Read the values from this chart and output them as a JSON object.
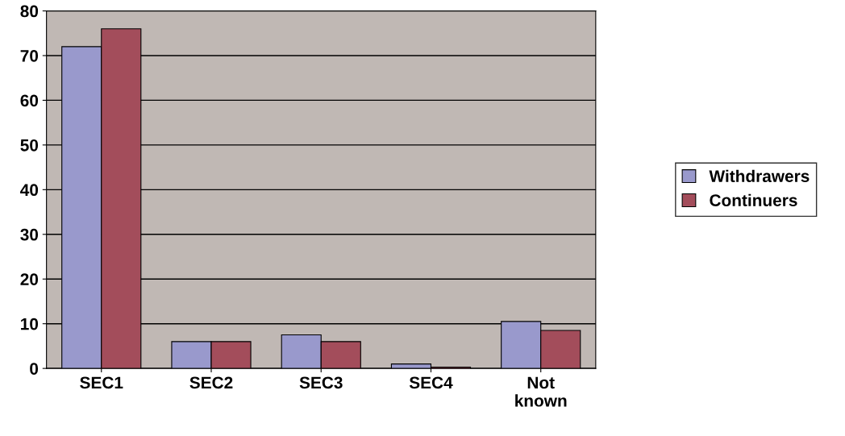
{
  "chart_data": {
    "type": "bar",
    "categories": [
      "SEC1",
      "SEC2",
      "SEC3",
      "SEC4",
      "Not\nknown"
    ],
    "series": [
      {
        "name": "Withdrawers",
        "color": "#9999cc",
        "values": [
          72,
          6,
          7.5,
          1,
          10.5
        ]
      },
      {
        "name": "Continuers",
        "color": "#a34d5b",
        "values": [
          76,
          6,
          6,
          0.3,
          8.5
        ]
      }
    ],
    "ylim": [
      0,
      80
    ],
    "yticks": [
      0,
      10,
      20,
      30,
      40,
      50,
      60,
      70,
      80
    ],
    "grid": "y",
    "legend": "right"
  }
}
